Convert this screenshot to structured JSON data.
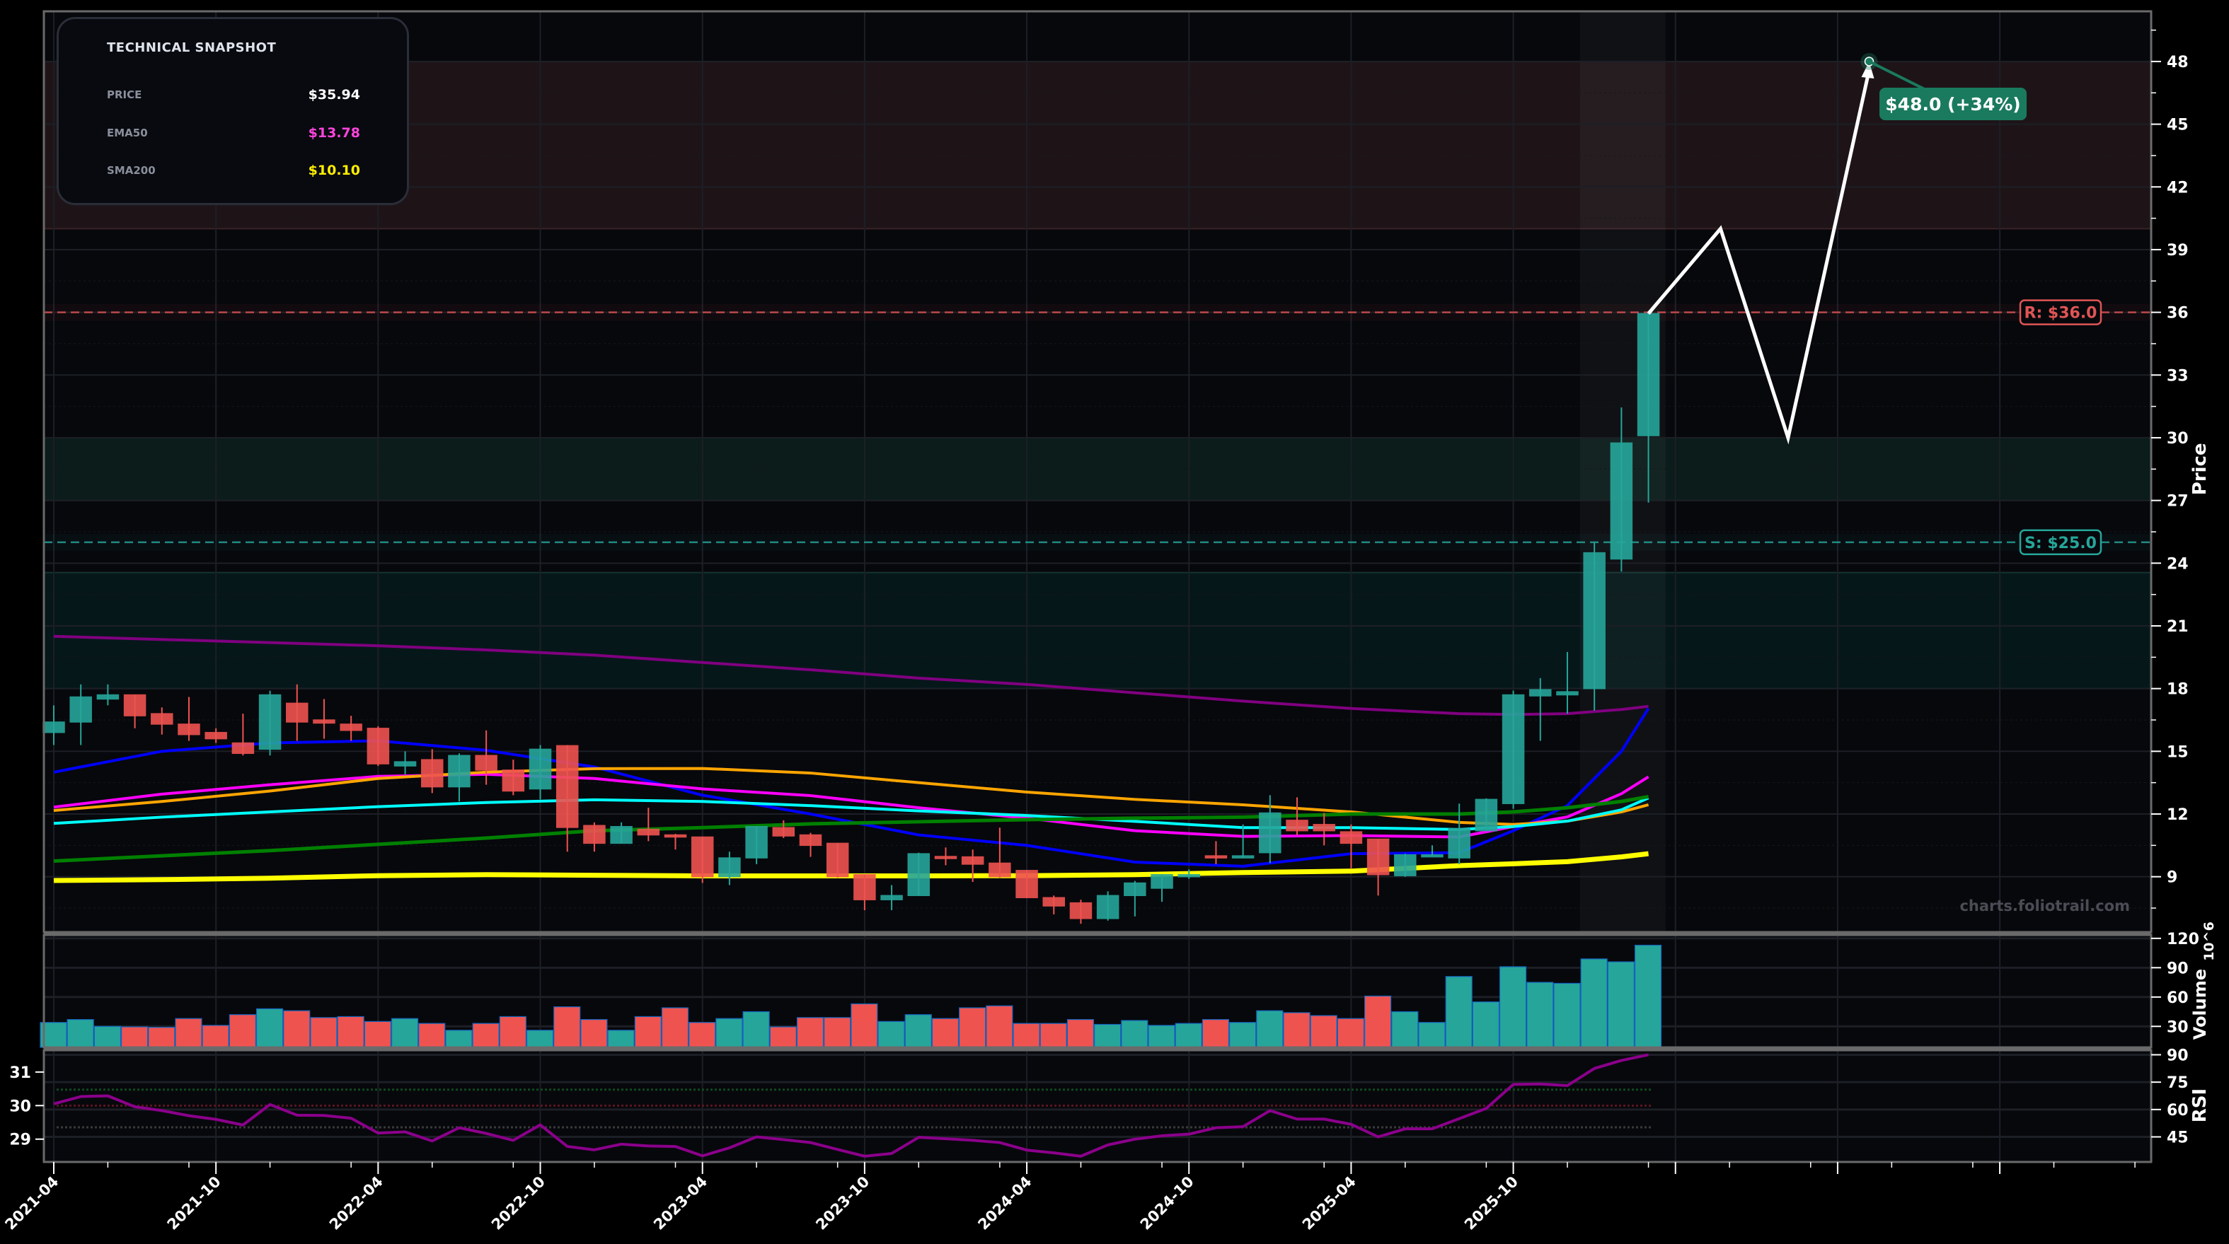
{
  "snapshot": {
    "title": "TECHNICAL SNAPSHOT",
    "rows": [
      {
        "label": "PRICE",
        "value": "$35.94",
        "color": "#ffffff"
      },
      {
        "label": "EMA50",
        "value": "$13.78",
        "color": "#ff44dd"
      },
      {
        "label": "SMA200",
        "value": "$10.10",
        "color": "#ffee00"
      }
    ]
  },
  "watermark": "charts.foliotrail.com",
  "chart_data": [
    {
      "type": "candlestick",
      "panel": "price",
      "ylabel": "Price",
      "ylim": [
        6.35,
        50.4
      ],
      "xlim": [
        "2021-03-20",
        "2027-09-19"
      ],
      "yticks": [
        9,
        12,
        15,
        18,
        21,
        24,
        27,
        30,
        33,
        36,
        39,
        42,
        45,
        48
      ],
      "xticks_labeled": [
        "2021-04",
        "2021-10",
        "2022-04",
        "2022-10",
        "2023-04",
        "2023-10",
        "2024-04",
        "2024-10",
        "2025-04",
        "2025-10"
      ],
      "xticks_unlabeled": [
        "2026-04",
        "2026-10",
        "2027-04"
      ],
      "grid": true,
      "colors": {
        "up": "#26a69a",
        "down": "#ef5350"
      },
      "candles": [
        [
          "2021-04",
          15.9,
          17.2,
          15.3,
          16.4
        ],
        [
          "2021-05",
          16.4,
          18.2,
          15.3,
          17.6
        ],
        [
          "2021-06",
          17.5,
          18.2,
          17.2,
          17.7
        ],
        [
          "2021-07",
          17.7,
          17.7,
          16.1,
          16.7
        ],
        [
          "2021-08",
          16.8,
          17.1,
          15.8,
          16.3
        ],
        [
          "2021-09",
          16.3,
          17.6,
          15.5,
          15.8
        ],
        [
          "2021-10",
          15.9,
          16.1,
          15.4,
          15.6
        ],
        [
          "2021-11",
          15.4,
          16.8,
          14.8,
          14.9
        ],
        [
          "2021-12",
          15.1,
          17.9,
          14.8,
          17.7
        ],
        [
          "2022-01",
          17.3,
          18.2,
          15.5,
          16.4
        ],
        [
          "2022-02",
          16.5,
          17.5,
          15.6,
          16.35
        ],
        [
          "2022-03",
          16.3,
          16.7,
          15.5,
          16.0
        ],
        [
          "2022-04",
          16.1,
          16.2,
          14.3,
          14.4
        ],
        [
          "2022-05",
          14.3,
          15.0,
          13.9,
          14.5
        ],
        [
          "2022-06",
          14.6,
          15.1,
          13.0,
          13.3
        ],
        [
          "2022-07",
          13.3,
          14.9,
          12.6,
          14.8
        ],
        [
          "2022-08",
          14.8,
          16.0,
          13.4,
          14.1
        ],
        [
          "2022-09",
          14.1,
          14.6,
          12.9,
          13.1
        ],
        [
          "2022-10",
          13.2,
          15.3,
          12.7,
          15.1
        ],
        [
          "2022-11",
          15.27,
          15.3,
          10.2,
          11.36
        ],
        [
          "2022-12",
          11.45,
          11.6,
          10.2,
          10.6
        ],
        [
          "2023-01",
          10.6,
          11.6,
          10.6,
          11.4
        ],
        [
          "2023-02",
          11.27,
          12.3,
          10.7,
          11.0
        ],
        [
          "2023-03",
          11.0,
          11.05,
          10.3,
          10.9
        ],
        [
          "2023-04",
          10.9,
          10.9,
          8.7,
          9.0
        ],
        [
          "2023-05",
          9.0,
          10.2,
          8.6,
          9.9
        ],
        [
          "2023-06",
          9.9,
          11.4,
          9.6,
          11.4
        ],
        [
          "2023-07",
          11.35,
          11.7,
          10.85,
          10.95
        ],
        [
          "2023-08",
          11.0,
          11.1,
          9.95,
          10.5
        ],
        [
          "2023-09",
          10.6,
          10.6,
          8.95,
          9.0
        ],
        [
          "2023-10",
          9.1,
          9.1,
          7.4,
          7.9
        ],
        [
          "2023-11",
          7.9,
          8.6,
          7.4,
          8.1
        ],
        [
          "2023-12",
          8.1,
          10.15,
          8.1,
          10.1
        ],
        [
          "2024-01",
          9.97,
          10.4,
          9.55,
          9.9
        ],
        [
          "2024-02",
          9.95,
          10.3,
          8.75,
          9.6
        ],
        [
          "2024-03",
          9.65,
          11.35,
          8.95,
          9.0
        ],
        [
          "2024-04",
          9.3,
          9.3,
          8.0,
          8.0
        ],
        [
          "2024-05",
          8.0,
          8.1,
          7.2,
          7.6
        ],
        [
          "2024-06",
          7.75,
          7.9,
          6.75,
          7.0
        ],
        [
          "2024-07",
          7.0,
          8.3,
          6.9,
          8.1
        ],
        [
          "2024-08",
          8.1,
          8.8,
          7.1,
          8.7
        ],
        [
          "2024-09",
          8.45,
          9.1,
          7.8,
          9.1
        ],
        [
          "2024-10",
          9.05,
          9.35,
          8.9,
          9.1
        ],
        [
          "2024-11",
          10.0,
          10.7,
          9.6,
          9.9
        ],
        [
          "2024-12",
          9.9,
          11.5,
          9.9,
          10.0
        ],
        [
          "2025-01",
          10.15,
          12.9,
          9.65,
          12.05
        ],
        [
          "2025-02",
          11.7,
          12.8,
          11.0,
          11.2
        ],
        [
          "2025-03",
          11.5,
          12.05,
          10.5,
          11.2
        ],
        [
          "2025-04",
          11.15,
          11.5,
          9.4,
          10.6
        ],
        [
          "2025-05",
          10.8,
          10.8,
          8.1,
          9.1
        ],
        [
          "2025-06",
          9.05,
          10.1,
          9.0,
          10.05
        ],
        [
          "2025-07",
          10.0,
          10.5,
          10.0,
          10.05
        ],
        [
          "2025-08",
          9.9,
          12.5,
          9.6,
          11.3
        ],
        [
          "2025-09",
          11.2,
          12.75,
          11.2,
          12.7
        ],
        [
          "2025-10",
          12.5,
          17.9,
          12.25,
          17.7
        ],
        [
          "2025-11",
          17.65,
          18.5,
          15.5,
          17.95
        ],
        [
          "2025-12",
          17.7,
          19.75,
          16.8,
          17.85
        ],
        [
          "2026-01",
          18.0,
          25.0,
          16.95,
          24.5
        ],
        [
          "2026-02",
          24.2,
          31.45,
          23.6,
          29.75
        ],
        [
          "2026-03",
          30.1,
          36.0,
          26.9,
          35.94
        ]
      ],
      "moving_averages": {
        "dates": [
          "2021-04",
          "2021-08",
          "2021-12",
          "2022-04",
          "2022-08",
          "2022-12",
          "2023-04",
          "2023-08",
          "2023-12",
          "2024-04",
          "2024-08",
          "2024-12",
          "2025-04",
          "2025-08",
          "2025-10",
          "2025-12",
          "2026-02",
          "2026-03"
        ],
        "series": [
          {
            "color": "#800080",
            "values": [
              20.5,
              20.35,
              20.2,
              20.05,
              19.85,
              19.6,
              19.25,
              18.9,
              18.5,
              18.2,
              17.8,
              17.4,
              17.05,
              16.8,
              16.76,
              16.8,
              17.0,
              17.15
            ]
          },
          {
            "color": "#0000ff",
            "values": [
              14.0,
              15.0,
              15.4,
              15.5,
              15.05,
              14.25,
              12.9,
              12.0,
              11.0,
              10.5,
              9.7,
              9.5,
              10.1,
              10.15,
              11.2,
              12.4,
              15.0,
              17.05
            ]
          },
          {
            "color": "#ff00ff",
            "name": "EMA50",
            "values": [
              12.33,
              12.95,
              13.4,
              13.8,
              13.9,
              13.7,
              13.2,
              12.88,
              12.3,
              11.8,
              11.2,
              10.93,
              10.97,
              10.9,
              11.4,
              11.86,
              12.97,
              13.78
            ]
          },
          {
            "color": "#ffa500",
            "values": [
              12.17,
              12.6,
              13.1,
              13.7,
              14.0,
              14.17,
              14.18,
              13.96,
              13.5,
              13.05,
              12.7,
              12.44,
              12.1,
              11.6,
              11.5,
              11.66,
              12.1,
              12.44
            ]
          },
          {
            "color": "#00ffff",
            "values": [
              11.55,
              11.85,
              12.1,
              12.35,
              12.55,
              12.68,
              12.6,
              12.4,
              12.15,
              11.93,
              11.65,
              11.35,
              11.35,
              11.26,
              11.4,
              11.66,
              12.2,
              12.77
            ]
          },
          {
            "color": "#008000",
            "values": [
              9.75,
              10.0,
              10.25,
              10.55,
              10.85,
              11.2,
              11.35,
              11.53,
              11.63,
              11.73,
              11.8,
              11.85,
              12.0,
              12.0,
              12.1,
              12.3,
              12.6,
              12.83
            ]
          },
          {
            "color": "#ffff00",
            "name": "SMA200",
            "values": [
              8.82,
              8.86,
              8.93,
              9.05,
              9.1,
              9.07,
              9.04,
              9.04,
              9.04,
              9.05,
              9.1,
              9.2,
              9.27,
              9.53,
              9.62,
              9.72,
              9.95,
              10.1
            ]
          }
        ]
      },
      "zones": [
        {
          "kind": "resistance",
          "from": 40,
          "to": 48,
          "color": "#1e1418"
        },
        {
          "kind": "support",
          "from": 27,
          "to": 30,
          "color": "#0b1c1a"
        },
        {
          "kind": "support",
          "from": 18,
          "to": 23.55,
          "color": "#06171a"
        }
      ],
      "levels": [
        {
          "label": "R: $36.0",
          "value": 36.0,
          "color": "#e05555"
        },
        {
          "label": "S: $25.0",
          "value": 25.0,
          "color": "#26a69a"
        }
      ],
      "highlight_range": [
        "2025-12-15",
        "2026-03-20"
      ],
      "forecast": {
        "points": [
          [
            "2026-03-01",
            35.94
          ],
          [
            "2026-05-21",
            40
          ],
          [
            "2026-08-06",
            30
          ],
          [
            "2026-11-06",
            48
          ]
        ],
        "target_label": "$48.0 (+34%)",
        "target_color": "#1a7a5e"
      }
    },
    {
      "type": "bar",
      "panel": "volume",
      "ylabel": "Volume",
      "yunit": "10^6",
      "ylim": [
        8.5,
        123.5
      ],
      "yticks": [
        30,
        60,
        90,
        120
      ],
      "values": [
        34,
        37,
        30,
        29.5,
        29,
        38,
        31,
        42,
        48,
        46,
        39,
        40,
        35,
        38,
        33,
        26,
        33,
        40,
        26,
        50,
        37,
        26,
        40,
        49,
        34,
        38,
        45,
        29.5,
        39,
        39,
        53,
        35,
        42,
        38,
        49,
        51,
        33,
        33,
        37,
        32,
        36,
        31,
        33,
        37,
        34,
        46,
        44,
        41,
        38,
        61,
        45,
        34,
        81,
        55,
        91,
        75,
        74,
        99,
        96,
        113
      ]
    },
    {
      "type": "line",
      "panel": "rsi",
      "ylabel": "RSI",
      "ylim": [
        31.25,
        92.5
      ],
      "yticks": [
        45,
        60,
        75,
        90
      ],
      "left_ylim": [
        28.32,
        31.65
      ],
      "left_yticks": [
        29,
        30,
        31
      ],
      "color": "#8b008b",
      "reference_lines": [
        {
          "value": 70.9,
          "color": "#0e4a1e"
        },
        {
          "value": 62.1,
          "color": "#5a1520"
        },
        {
          "value": 50.25,
          "color": "#3a3a3a"
        }
      ],
      "values": [
        63.1,
        67.1,
        67.5,
        61.5,
        59.4,
        56.6,
        54.6,
        51.5,
        62.75,
        56.9,
        56.75,
        55.25,
        47.1,
        47.75,
        42.75,
        50,
        46.9,
        43.1,
        51.6,
        39.75,
        37.9,
        41,
        40,
        39.75,
        34.6,
        39,
        45,
        43.5,
        41.9,
        38.1,
        34.4,
        35.9,
        44.75,
        44,
        43.1,
        41.9,
        37.75,
        36.25,
        34.4,
        40.6,
        43.75,
        45.6,
        46.5,
        50,
        50.6,
        59.4,
        54.75,
        54.75,
        51.9,
        45,
        49.4,
        49.4,
        55,
        60.6,
        73.75,
        74,
        73.1,
        82.5,
        86.9,
        90
      ]
    }
  ]
}
